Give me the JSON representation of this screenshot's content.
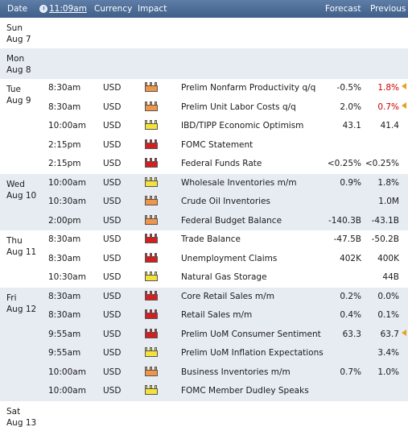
{
  "header": {
    "date_label": "Date",
    "time_label": "11:09am",
    "currency_label": "Currency",
    "impact_label": "Impact",
    "forecast_label": "Forecast",
    "previous_label": "Previous"
  },
  "colors": {
    "header_bg": "#4a6a94",
    "shade_row": "#e7ecf3",
    "impact_high": "#d21f1f",
    "impact_medium": "#f0964a",
    "impact_low": "#f4e23a",
    "revised_red": "#cc0000",
    "revised_marker": "#e8a020"
  },
  "days": [
    {
      "dow": "Sun",
      "date": "Aug 7",
      "shade": false,
      "events": []
    },
    {
      "dow": "Mon",
      "date": "Aug 8",
      "shade": true,
      "events": []
    },
    {
      "dow": "Tue",
      "date": "Aug 9",
      "shade": false,
      "events": [
        {
          "time": "8:30am",
          "currency": "USD",
          "impact": "medium",
          "event": "Prelim Nonfarm Productivity q/q",
          "forecast": "-0.5%",
          "previous": "1.8%",
          "previous_revised": true
        },
        {
          "time": "8:30am",
          "currency": "USD",
          "impact": "medium",
          "event": "Prelim Unit Labor Costs q/q",
          "forecast": "2.0%",
          "previous": "0.7%",
          "previous_revised": true
        },
        {
          "time": "10:00am",
          "currency": "USD",
          "impact": "low",
          "event": "IBD/TIPP Economic Optimism",
          "forecast": "43.1",
          "previous": "41.4"
        },
        {
          "time": "2:15pm",
          "currency": "USD",
          "impact": "high",
          "event": "FOMC Statement",
          "forecast": "",
          "previous": ""
        },
        {
          "time": "2:15pm",
          "currency": "USD",
          "impact": "high",
          "event": "Federal Funds Rate",
          "forecast": "<0.25%",
          "previous": "<0.25%"
        }
      ]
    },
    {
      "dow": "Wed",
      "date": "Aug 10",
      "shade": true,
      "events": [
        {
          "time": "10:00am",
          "currency": "USD",
          "impact": "low",
          "event": "Wholesale Inventories m/m",
          "forecast": "0.9%",
          "previous": "1.8%"
        },
        {
          "time": "10:30am",
          "currency": "USD",
          "impact": "medium",
          "event": "Crude Oil Inventories",
          "forecast": "",
          "previous": "1.0M"
        },
        {
          "time": "2:00pm",
          "currency": "USD",
          "impact": "medium",
          "event": "Federal Budget Balance",
          "forecast": "-140.3B",
          "previous": "-43.1B"
        }
      ]
    },
    {
      "dow": "Thu",
      "date": "Aug 11",
      "shade": false,
      "events": [
        {
          "time": "8:30am",
          "currency": "USD",
          "impact": "high",
          "event": "Trade Balance",
          "forecast": "-47.5B",
          "previous": "-50.2B"
        },
        {
          "time": "8:30am",
          "currency": "USD",
          "impact": "high",
          "event": "Unemployment Claims",
          "forecast": "402K",
          "previous": "400K"
        },
        {
          "time": "10:30am",
          "currency": "USD",
          "impact": "low",
          "event": "Natural Gas Storage",
          "forecast": "",
          "previous": "44B"
        }
      ]
    },
    {
      "dow": "Fri",
      "date": "Aug 12",
      "shade": true,
      "events": [
        {
          "time": "8:30am",
          "currency": "USD",
          "impact": "high",
          "event": "Core Retail Sales m/m",
          "forecast": "0.2%",
          "previous": "0.0%"
        },
        {
          "time": "8:30am",
          "currency": "USD",
          "impact": "high",
          "event": "Retail Sales m/m",
          "forecast": "0.4%",
          "previous": "0.1%"
        },
        {
          "time": "9:55am",
          "currency": "USD",
          "impact": "high",
          "event": "Prelim UoM Consumer Sentiment",
          "forecast": "63.3",
          "previous": "63.7",
          "previous_revised": true
        },
        {
          "time": "9:55am",
          "currency": "USD",
          "impact": "low",
          "event": "Prelim UoM Inflation Expectations",
          "forecast": "",
          "previous": "3.4%"
        },
        {
          "time": "10:00am",
          "currency": "USD",
          "impact": "medium",
          "event": "Business Inventories m/m",
          "forecast": "0.7%",
          "previous": "1.0%"
        },
        {
          "time": "10:00am",
          "currency": "USD",
          "impact": "low",
          "event": "FOMC Member Dudley Speaks",
          "forecast": "",
          "previous": ""
        }
      ]
    },
    {
      "dow": "Sat",
      "date": "Aug 13",
      "shade": false,
      "events": []
    }
  ]
}
